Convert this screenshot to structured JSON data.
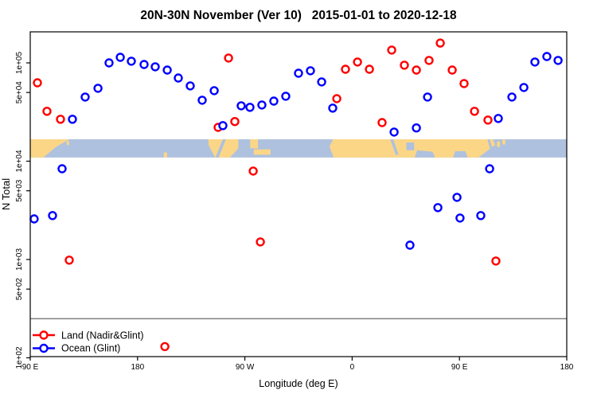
{
  "page": {
    "background": "#ffffff"
  },
  "chart_data": {
    "type": "scatter",
    "title": "20N-30N November (Ver 10)   2015-01-01 to 2020-12-18",
    "xlabel": "Longitude (deg E)",
    "ylabel": "N Total",
    "grid": false,
    "legend_position": "bottom-left",
    "x_axis": {
      "min": 90,
      "max": 540,
      "unit": "deg E (wrapping 90E eastward to 180)",
      "ticks": [
        {
          "value": 90,
          "label": "90 E"
        },
        {
          "value": 180,
          "label": "180"
        },
        {
          "value": 270,
          "label": "90 W"
        },
        {
          "value": 360,
          "label": "0"
        },
        {
          "value": 450,
          "label": "90 E"
        },
        {
          "value": 540,
          "label": "180"
        }
      ]
    },
    "y_axis": {
      "scale": "log",
      "min": 100,
      "max": 210000,
      "ticks": [
        {
          "value": 100000,
          "label": "1e+05"
        },
        {
          "value": 50000,
          "label": "5e+04"
        },
        {
          "value": 10000,
          "label": "1e+04"
        },
        {
          "value": 5000,
          "label": "5e+03"
        },
        {
          "value": 1000,
          "label": "1e+03"
        },
        {
          "value": 500,
          "label": "5e+02"
        },
        {
          "value": 100,
          "label": "1e+02"
        }
      ]
    },
    "threshold_line": {
      "value": 250,
      "color": "#808080"
    },
    "map_band": {
      "description": "20N-30N land/ocean strip",
      "value_top": 16700,
      "value_bottom": 10900,
      "ocean_color": "#AEC1DE",
      "land_color": "#FBD687",
      "land_shapes": [
        {
          "name": "asia-west",
          "points": [
            [
              90,
              0
            ],
            [
              122.5,
              0
            ],
            [
              111,
              0.45
            ],
            [
              101,
              1
            ],
            [
              90,
              1
            ]
          ]
        },
        {
          "name": "taiwan-speck",
          "points": [
            [
              120.5,
              0.08
            ],
            [
              122.5,
              0.08
            ],
            [
              122.5,
              0.32
            ],
            [
              120.5,
              0.32
            ]
          ]
        },
        {
          "name": "hawaii",
          "points": [
            [
              202,
              0.72
            ],
            [
              204.8,
              0.72
            ],
            [
              204.8,
              1
            ],
            [
              202,
              1
            ]
          ]
        },
        {
          "name": "mexico",
          "points": [
            [
              239.5,
              0
            ],
            [
              264.5,
              0
            ],
            [
              264.5,
              0.5
            ],
            [
              257.5,
              1
            ],
            [
              245,
              1
            ],
            [
              239.5,
              0.3
            ]
          ]
        },
        {
          "name": "florida",
          "points": [
            [
              274.5,
              0
            ],
            [
              281,
              0
            ],
            [
              281,
              0.5
            ],
            [
              274.5,
              0.5
            ]
          ]
        },
        {
          "name": "cuba-bahamas",
          "points": [
            [
              277.5,
              0.55
            ],
            [
              291.5,
              0.55
            ],
            [
              291.5,
              0.85
            ],
            [
              277.5,
              0.85
            ]
          ]
        },
        {
          "name": "africa-asia",
          "points": [
            [
              341,
              0.4
            ],
            [
              344,
              0
            ],
            [
              478,
              0
            ],
            [
              480,
              0.3
            ],
            [
              466,
              1
            ],
            [
              344.5,
              1
            ]
          ]
        },
        {
          "name": "ryukyu-islands",
          "points": [
            [
              481.5,
              0.12
            ],
            [
              484,
              0.12
            ],
            [
              484,
              0.42
            ],
            [
              481.5,
              0.42
            ]
          ]
        },
        {
          "name": "kyushu-speck",
          "points": [
            [
              486,
              0.02
            ],
            [
              488.5,
              0.02
            ],
            [
              488.5,
              0.28
            ],
            [
              486,
              0.28
            ]
          ]
        }
      ],
      "water_shapes": [
        {
          "name": "gulf-of-california",
          "points": [
            [
              251.5,
              0
            ],
            [
              254.2,
              0
            ],
            [
              248,
              1
            ],
            [
              245.3,
              1
            ]
          ]
        },
        {
          "name": "red-sea",
          "points": [
            [
              392,
              0
            ],
            [
              394.5,
              0
            ],
            [
              399,
              0.85
            ],
            [
              396.5,
              0.85
            ]
          ]
        },
        {
          "name": "persian-gulf",
          "points": [
            [
              405.5,
              0.18
            ],
            [
              412,
              0.18
            ],
            [
              412,
              0.6
            ],
            [
              405.5,
              0.6
            ]
          ]
        },
        {
          "name": "arabian-sea",
          "points": [
            [
              412.5,
              1
            ],
            [
              414.5,
              0.6
            ],
            [
              427.5,
              0.68
            ],
            [
              429.5,
              1
            ]
          ]
        },
        {
          "name": "bay-of-bengal",
          "points": [
            [
              444.5,
              1
            ],
            [
              446.5,
              0.65
            ],
            [
              455,
              0.65
            ],
            [
              457,
              1
            ]
          ]
        },
        {
          "name": "taiwan-strait",
          "points": [
            [
              473.5,
              0
            ],
            [
              475.5,
              0
            ],
            [
              477.5,
              0.5
            ],
            [
              475.5,
              0.5
            ]
          ]
        }
      ]
    },
    "series": [
      {
        "name": "Land (Nadir&Glint)",
        "color": "#FF0000",
        "marker": "open-circle",
        "points": [
          [
            96.0,
            62800
          ],
          [
            104.0,
            32200
          ],
          [
            115.4,
            26700
          ],
          [
            122.7,
            985
          ],
          [
            202.9,
            130
          ],
          [
            247.6,
            22100
          ],
          [
            256.3,
            112000
          ],
          [
            261.6,
            25300
          ],
          [
            277.0,
            7940
          ],
          [
            283.0,
            1510
          ],
          [
            347.1,
            43300
          ],
          [
            354.4,
            86200
          ],
          [
            364.5,
            102000
          ],
          [
            374.5,
            86200
          ],
          [
            385.1,
            24700
          ],
          [
            393.2,
            135000
          ],
          [
            403.8,
            94700
          ],
          [
            413.9,
            84600
          ],
          [
            424.5,
            106000
          ],
          [
            433.9,
            159000
          ],
          [
            443.9,
            84600
          ],
          [
            453.9,
            61600
          ],
          [
            462.6,
            32200
          ],
          [
            473.9,
            26200
          ],
          [
            480.6,
            966
          ]
        ]
      },
      {
        "name": "Ocean (Glint)",
        "color": "#0000FF",
        "marker": "open-circle",
        "points": [
          [
            93.3,
            2590
          ],
          [
            108.7,
            2800
          ],
          [
            116.7,
            8380
          ],
          [
            125.4,
            26700
          ],
          [
            136.1,
            44900
          ],
          [
            146.8,
            55200
          ],
          [
            156.1,
            100000
          ],
          [
            165.5,
            114000
          ],
          [
            174.8,
            104000
          ],
          [
            185.5,
            96400
          ],
          [
            194.8,
            91300
          ],
          [
            204.9,
            84600
          ],
          [
            214.2,
            70200
          ],
          [
            224.2,
            58300
          ],
          [
            234.2,
            41700
          ],
          [
            244.3,
            52200
          ],
          [
            251.6,
            23000
          ],
          [
            266.9,
            36600
          ],
          [
            274.3,
            35300
          ],
          [
            284.3,
            37300
          ],
          [
            294.3,
            40900
          ],
          [
            304.3,
            45800
          ],
          [
            315.0,
            78500
          ],
          [
            325.0,
            83100
          ],
          [
            334.4,
            64100
          ],
          [
            343.7,
            34700
          ],
          [
            395.2,
            19800
          ],
          [
            408.5,
            1400
          ],
          [
            413.9,
            21800
          ],
          [
            423.2,
            44900
          ],
          [
            431.9,
            3370
          ],
          [
            447.9,
            4290
          ],
          [
            450.5,
            2640
          ],
          [
            467.9,
            2800
          ],
          [
            475.3,
            8380
          ],
          [
            482.6,
            27200
          ],
          [
            494.0,
            44900
          ],
          [
            504.0,
            56200
          ],
          [
            513.3,
            102000
          ],
          [
            523.3,
            116000
          ],
          [
            532.7,
            106000
          ]
        ]
      }
    ]
  }
}
